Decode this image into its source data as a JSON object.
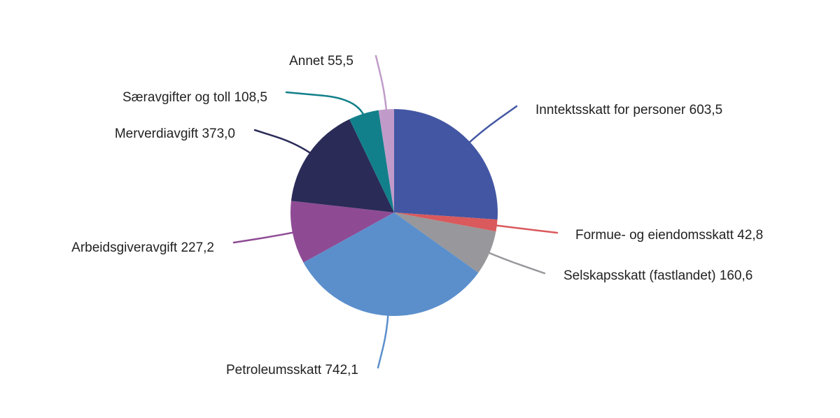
{
  "chart_data": {
    "type": "pie",
    "title": "",
    "slices": [
      {
        "label": "Inntektsskatt for personer",
        "value": 603.5,
        "display": "603,5",
        "color": "#4356a3"
      },
      {
        "label": "Formue- og eiendomsskatt",
        "value": 42.8,
        "display": "42,8",
        "color": "#d9595c"
      },
      {
        "label": "Selskapsskatt (fastlandet)",
        "value": 160.6,
        "display": "160,6",
        "color": "#98979b"
      },
      {
        "label": "Petroleumsskatt",
        "value": 742.1,
        "display": "742,1",
        "color": "#5b8fcc"
      },
      {
        "label": "Arbeidsgiveravgift",
        "value": 227.2,
        "display": "227,2",
        "color": "#8e4b94"
      },
      {
        "label": "Merverdiavgift",
        "value": 373.0,
        "display": "373,0",
        "color": "#2a2b57"
      },
      {
        "label": "Særavgifter og toll",
        "value": 108.5,
        "display": "108,5",
        "color": "#12808a"
      },
      {
        "label": "Annet",
        "value": 55.5,
        "display": "55,5",
        "color": "#c09bc9"
      }
    ]
  }
}
